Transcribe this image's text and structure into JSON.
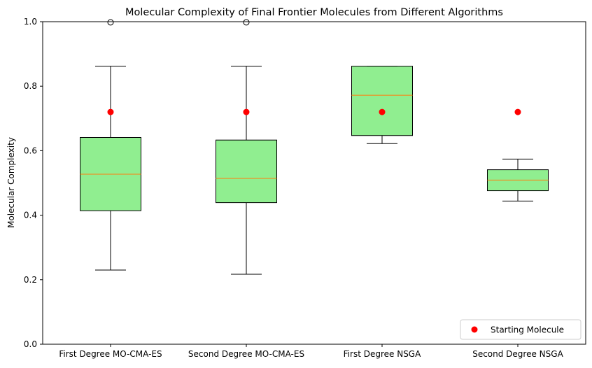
{
  "chart_data": {
    "type": "box",
    "title": "Molecular Complexity of Final Frontier Molecules from Different Algorithms",
    "xlabel": "",
    "ylabel": "Molecular Complexity",
    "ylim": [
      0.0,
      1.0
    ],
    "yticks": [
      "0.0",
      "0.2",
      "0.4",
      "0.6",
      "0.8",
      "1.0"
    ],
    "grid": false,
    "legend_position": "bottom-right",
    "box_color": "#90ee90",
    "median_color": "#ff7f0e",
    "marker_color": "#ff0000",
    "categories": [
      "First Degree MO-CMA-ES",
      "Second Degree MO-CMA-ES",
      "First Degree NSGA",
      "Second Degree NSGA"
    ],
    "boxes": [
      {
        "whisker_low": 0.23,
        "q1": 0.414,
        "median": 0.527,
        "q3": 0.641,
        "whisker_high": 0.862,
        "outliers": [
          0.998
        ]
      },
      {
        "whisker_low": 0.217,
        "q1": 0.439,
        "median": 0.514,
        "q3": 0.633,
        "whisker_high": 0.862,
        "outliers": [
          0.998
        ]
      },
      {
        "whisker_low": 0.622,
        "q1": 0.647,
        "median": 0.772,
        "q3": 0.862,
        "whisker_high": 0.862,
        "outliers": []
      },
      {
        "whisker_low": 0.444,
        "q1": 0.476,
        "median": 0.509,
        "q3": 0.541,
        "whisker_high": 0.574,
        "outliers": []
      }
    ],
    "series": [
      {
        "name": "Starting Molecule",
        "values": [
          0.72,
          0.72,
          0.72,
          0.72
        ]
      }
    ]
  }
}
